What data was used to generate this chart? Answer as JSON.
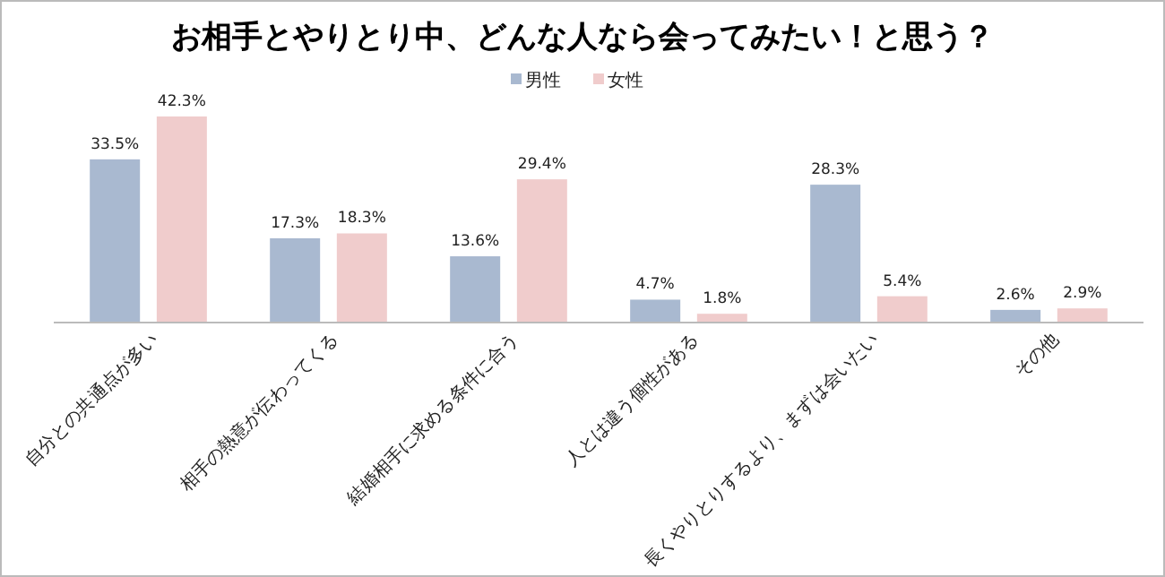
{
  "chart_data": {
    "type": "bar",
    "title": "お相手とやりとり中、どんな人なら会ってみたい！と思う？",
    "categories": [
      "自分との共通点が多い",
      "相手の熱意が伝わってくる",
      "結婚相手に求める条件に合う",
      "人とは違う個性がある",
      "長くやりとりするより、まずは会いたい",
      "その他"
    ],
    "series": [
      {
        "name": "男性",
        "color": "#a9b9d0",
        "values": [
          33.5,
          17.3,
          13.6,
          4.7,
          28.3,
          2.6
        ],
        "value_labels": [
          "33.5%",
          "17.3%",
          "13.6%",
          "4.7%",
          "28.3%",
          "2.6%"
        ]
      },
      {
        "name": "女性",
        "color": "#f0cccc",
        "values": [
          42.3,
          18.3,
          29.4,
          1.8,
          5.4,
          2.9
        ],
        "value_labels": [
          "42.3%",
          "18.3%",
          "29.4%",
          "1.8%",
          "5.4%",
          "2.9%"
        ]
      }
    ],
    "legend": "top"
  }
}
